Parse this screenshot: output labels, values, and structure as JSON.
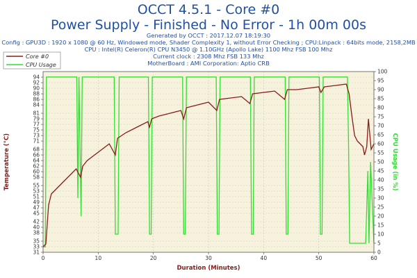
{
  "header": {
    "title": "OCCT 4.5.1 - Core #0",
    "subtitle": "Power Supply - Finished - No Error - 1h 00m 00s",
    "info": [
      "Generated by OCCT : 2017.12.07 18:19:30",
      "Config : GPU3D : 1920 x 1080 @ 60 Hz, Windowed mode, Shader Complexity 1, without Error Checking ; CPU:Linpack : 64bits mode, 2158,2MB",
      "CPU : Intel(R) Celeron(R) CPU N3450 @ 1.10GHz (Apollo Lake) 1100 Mhz FSB 100 Mhz",
      "Current clock : 2308 Mhz FSB 133 Mhz",
      "MotherBoard : AMI Corporation: Aptio CRB"
    ]
  },
  "colors": {
    "temperature": "#8b1a1a",
    "cpu_usage": "#33dd33",
    "plot_background": "#f7f2dc",
    "grid": "#c8c8c8",
    "title": "#1f4fa6"
  },
  "chart_data": {
    "type": "line",
    "xlabel": "Duration (Minutes)",
    "ylabel_left": "Temperature (°C)",
    "ylabel_right": "CPU Usage (in %)",
    "xlim": [
      0,
      60
    ],
    "ylim_left": [
      31,
      96
    ],
    "ylim_right": [
      0,
      100
    ],
    "x_ticks": [
      0,
      10,
      20,
      30,
      40,
      50,
      60
    ],
    "y_left_ticks": [
      31,
      33,
      35,
      38,
      40,
      42,
      45,
      47,
      49,
      51,
      53,
      55,
      58,
      60,
      62,
      64,
      66,
      68,
      71,
      73,
      75,
      77,
      79,
      81,
      84,
      86,
      88,
      90,
      92,
      94
    ],
    "y_right_ticks": [
      0,
      5,
      10,
      15,
      20,
      25,
      30,
      35,
      40,
      45,
      50,
      55,
      60,
      65,
      70,
      75,
      80,
      85,
      90,
      95,
      100
    ],
    "grid": true,
    "legend_position": "top-left",
    "series": [
      {
        "name": "Core #0",
        "axis": "left",
        "x": [
          0,
          0.5,
          1,
          1.5,
          2,
          3,
          4,
          5,
          6,
          6.8,
          7.2,
          8,
          10,
          12,
          13.1,
          13.5,
          15,
          17,
          19,
          19.3,
          19.7,
          21,
          23,
          25,
          25.5,
          26,
          28,
          30,
          31.5,
          32,
          34,
          36,
          37.5,
          38,
          40,
          42,
          43.8,
          44.3,
          46,
          48,
          50,
          50.4,
          51,
          53,
          55,
          55.5,
          56,
          56.5,
          57,
          57.5,
          58,
          58.3,
          58.7,
          59,
          59.5,
          60
        ],
        "y": [
          33,
          34,
          48,
          52,
          53,
          55,
          57,
          59,
          61,
          58,
          62,
          64,
          67,
          70,
          66,
          72,
          74,
          76,
          78,
          76,
          79,
          80,
          81,
          82,
          79,
          83,
          84,
          85,
          82,
          86,
          86.5,
          87,
          84.5,
          88,
          88.5,
          89,
          86,
          89.5,
          89.5,
          90,
          90.5,
          88.5,
          90.5,
          91,
          91.5,
          88,
          80,
          73,
          71,
          70,
          69,
          66,
          69,
          79,
          68,
          70
        ]
      },
      {
        "name": "CPU Usage",
        "axis": "right",
        "x": [
          0,
          0.4,
          0.6,
          1,
          6.1,
          6.3,
          6.5,
          6.9,
          7.1,
          12.9,
          13.1,
          13.6,
          13.8,
          19.1,
          19.3,
          19.6,
          19.8,
          25.3,
          25.5,
          25.8,
          26,
          31.4,
          31.6,
          31.9,
          32.1,
          37.6,
          37.8,
          38.1,
          38.3,
          43.9,
          44.1,
          44.4,
          44.6,
          50.1,
          50.3,
          50.6,
          50.8,
          55.2,
          55.4,
          55.6,
          57,
          58.5,
          58.9,
          59.1,
          59.4,
          60
        ],
        "y": [
          3,
          3,
          97,
          97,
          97,
          30,
          97,
          20,
          97,
          97,
          10,
          10,
          97,
          97,
          10,
          10,
          97,
          97,
          10,
          10,
          97,
          97,
          10,
          10,
          97,
          97,
          10,
          10,
          97,
          97,
          10,
          10,
          97,
          97,
          10,
          10,
          97,
          97,
          60,
          5,
          5,
          5,
          45,
          5,
          50,
          5
        ]
      }
    ]
  }
}
